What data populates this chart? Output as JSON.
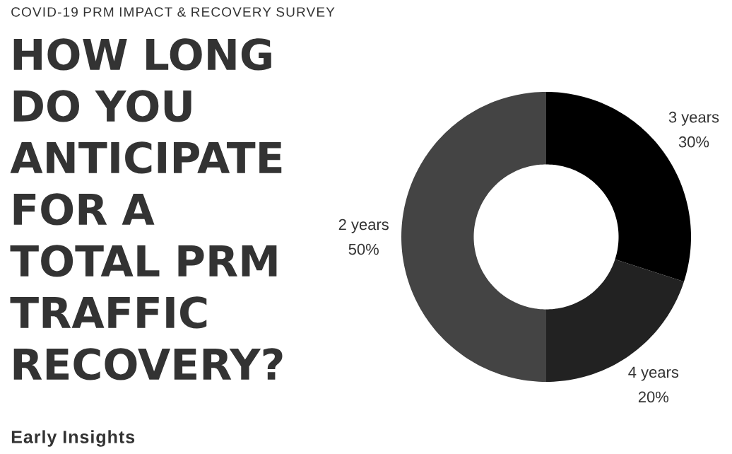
{
  "chart_data": {
    "type": "donut",
    "subtitle": "COVID-19 PRM IMPACT & RECOVERY SURVEY",
    "title": "HOW LONG DO YOU ANTICIPATE FOR A TOTAL PRM TRAFFIC RECOVERY?",
    "annotations": [
      "Early Insights"
    ],
    "categories": [
      "3 years",
      "4 years",
      "2 years"
    ],
    "values": [
      30,
      20,
      50
    ],
    "value_labels": [
      "30%",
      "20%",
      "50%"
    ],
    "colors": [
      "#000000",
      "#222222",
      "#444444"
    ]
  }
}
